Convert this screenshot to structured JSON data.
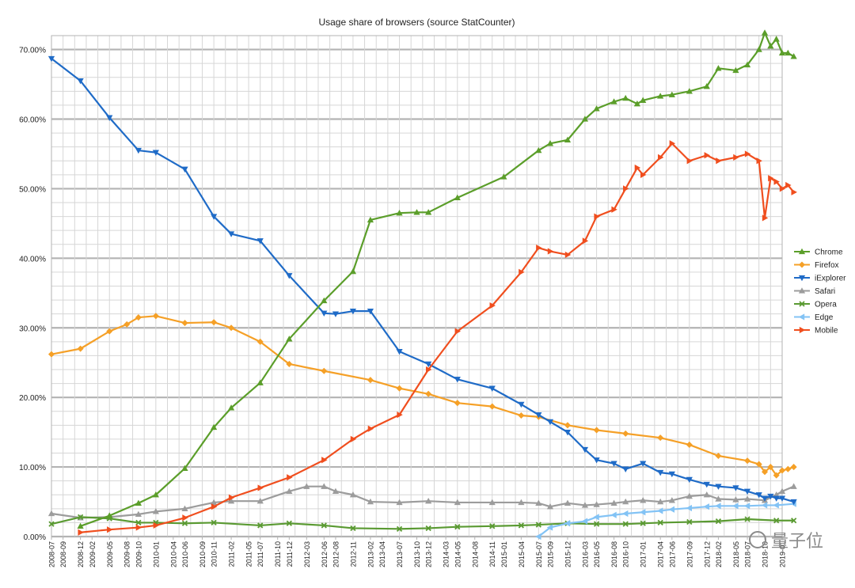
{
  "chart_data": {
    "type": "line",
    "title": "Usage share of browsers (source StatCounter)",
    "ylim": [
      0,
      72
    ],
    "y_ticks": [
      0,
      10,
      20,
      30,
      40,
      50,
      60,
      70
    ],
    "y_tick_labels": [
      "0.00%",
      "10.00%",
      "20.00%",
      "30.00%",
      "40.00%",
      "50.00%",
      "60.00%",
      "70.00%"
    ],
    "x_tick_labels": [
      "2008-07",
      "2008-09",
      "2008-12",
      "2009-02",
      "2009-05",
      "2009-08",
      "2009-10",
      "2010-01",
      "2010-04",
      "2010-06",
      "2010-09",
      "2010-11",
      "2011-02",
      "2011-05",
      "2011-07",
      "2011-10",
      "2011-12",
      "2012-03",
      "2012-06",
      "2012-08",
      "2012-11",
      "2013-02",
      "2013-04",
      "2013-07",
      "2013-10",
      "2013-12",
      "2014-03",
      "2014-05",
      "2014-08",
      "2014-11",
      "2015-01",
      "2015-04",
      "2015-07",
      "2015-09",
      "2015-12",
      "2016-03",
      "2016-05",
      "2016-08",
      "2016-10",
      "2017-01",
      "2017-04",
      "2017-06",
      "2017-09",
      "2017-12",
      "2018-02",
      "2018-05",
      "2018-07",
      "2018-10",
      "2019-01"
    ],
    "legend_position": "right",
    "grid": true,
    "series": [
      {
        "name": "Chrome",
        "color": "#5b9e2a",
        "marker": "triangle-up",
        "x": [
          "2008-12",
          "2009-05",
          "2009-10",
          "2010-01",
          "2010-06",
          "2010-11",
          "2011-02",
          "2011-07",
          "2011-12",
          "2012-06",
          "2012-11",
          "2013-02",
          "2013-07",
          "2013-10",
          "2013-12",
          "2014-05",
          "2015-01",
          "2015-07",
          "2015-09",
          "2015-12",
          "2016-03",
          "2016-05",
          "2016-08",
          "2016-10",
          "2016-12",
          "2017-01",
          "2017-04",
          "2017-06",
          "2017-09",
          "2017-12",
          "2018-02",
          "2018-05",
          "2018-07",
          "2018-09",
          "2018-10",
          "2018-11",
          "2018-12",
          "2019-01",
          "2019-02",
          "2019-03"
        ],
        "values": [
          1.5,
          3.0,
          4.8,
          6.0,
          9.8,
          15.7,
          18.5,
          22.1,
          28.4,
          33.9,
          38.1,
          45.5,
          46.5,
          46.6,
          46.6,
          48.7,
          51.7,
          55.5,
          56.5,
          57.0,
          60.0,
          61.5,
          62.5,
          63.0,
          62.2,
          62.7,
          63.3,
          63.5,
          64.0,
          64.7,
          67.3,
          67.0,
          67.8,
          70.0,
          72.4,
          70.5,
          71.5,
          69.5,
          69.5,
          69.0
        ]
      },
      {
        "name": "Firefox",
        "color": "#f5a027",
        "marker": "diamond",
        "x": [
          "2008-07",
          "2008-12",
          "2009-05",
          "2009-08",
          "2009-10",
          "2010-01",
          "2010-06",
          "2010-11",
          "2011-02",
          "2011-07",
          "2011-12",
          "2012-06",
          "2013-02",
          "2013-07",
          "2013-12",
          "2014-05",
          "2014-11",
          "2015-04",
          "2015-07",
          "2015-12",
          "2016-05",
          "2016-10",
          "2017-04",
          "2017-09",
          "2018-02",
          "2018-07",
          "2018-09",
          "2018-10",
          "2018-11",
          "2018-12",
          "2019-01",
          "2019-02",
          "2019-03"
        ],
        "values": [
          26.2,
          27.0,
          29.5,
          30.5,
          31.5,
          31.7,
          30.7,
          30.8,
          30.0,
          28.0,
          24.8,
          23.8,
          22.5,
          21.3,
          20.5,
          19.2,
          18.7,
          17.4,
          17.2,
          16.0,
          15.3,
          14.8,
          14.2,
          13.2,
          11.6,
          10.9,
          10.4,
          9.3,
          10.0,
          8.8,
          9.5,
          9.7,
          10.0
        ]
      },
      {
        "name": "iExplorer",
        "color": "#1f6bc7",
        "marker": "triangle-down",
        "x": [
          "2008-07",
          "2008-12",
          "2009-05",
          "2009-10",
          "2010-01",
          "2010-06",
          "2010-11",
          "2011-02",
          "2011-07",
          "2011-12",
          "2012-06",
          "2012-08",
          "2012-11",
          "2013-02",
          "2013-07",
          "2013-12",
          "2014-05",
          "2014-11",
          "2015-04",
          "2015-07",
          "2015-09",
          "2015-12",
          "2016-03",
          "2016-05",
          "2016-08",
          "2016-10",
          "2017-01",
          "2017-04",
          "2017-06",
          "2017-09",
          "2017-12",
          "2018-02",
          "2018-05",
          "2018-07",
          "2018-09",
          "2018-10",
          "2018-11",
          "2018-12",
          "2019-01",
          "2019-03"
        ],
        "values": [
          68.7,
          65.5,
          60.2,
          55.5,
          55.2,
          52.8,
          46.0,
          43.5,
          42.5,
          37.5,
          32.1,
          32.0,
          32.4,
          32.4,
          26.6,
          24.8,
          22.6,
          21.3,
          19.0,
          17.5,
          16.5,
          15.0,
          12.5,
          11.0,
          10.5,
          9.7,
          10.5,
          9.2,
          9.0,
          8.2,
          7.5,
          7.2,
          7.0,
          6.5,
          6.0,
          5.5,
          5.8,
          5.5,
          5.5,
          5.0
        ]
      },
      {
        "name": "Safari",
        "color": "#9c9c9c",
        "marker": "triangle-up",
        "x": [
          "2008-07",
          "2008-12",
          "2009-05",
          "2009-10",
          "2010-01",
          "2010-06",
          "2010-11",
          "2011-02",
          "2011-07",
          "2011-12",
          "2012-03",
          "2012-06",
          "2012-08",
          "2012-11",
          "2013-02",
          "2013-07",
          "2013-12",
          "2014-05",
          "2014-11",
          "2015-04",
          "2015-07",
          "2015-09",
          "2015-12",
          "2016-03",
          "2016-05",
          "2016-08",
          "2016-10",
          "2017-01",
          "2017-04",
          "2017-06",
          "2017-09",
          "2017-12",
          "2018-02",
          "2018-05",
          "2018-07",
          "2018-10",
          "2018-12",
          "2019-01",
          "2019-03"
        ],
        "values": [
          3.3,
          2.7,
          2.8,
          3.2,
          3.6,
          4.0,
          4.9,
          5.1,
          5.1,
          6.5,
          7.2,
          7.2,
          6.5,
          6.0,
          5.0,
          4.9,
          5.1,
          4.9,
          4.9,
          4.9,
          4.8,
          4.3,
          4.8,
          4.5,
          4.6,
          4.8,
          5.0,
          5.2,
          5.0,
          5.2,
          5.8,
          6.0,
          5.4,
          5.3,
          5.4,
          5.2,
          6.0,
          6.5,
          7.2
        ]
      },
      {
        "name": "Opera",
        "color": "#5a9a32",
        "marker": "x",
        "x": [
          "2008-07",
          "2008-12",
          "2009-05",
          "2009-10",
          "2010-01",
          "2010-06",
          "2010-11",
          "2011-07",
          "2011-12",
          "2012-06",
          "2012-11",
          "2013-07",
          "2013-12",
          "2014-05",
          "2014-11",
          "2015-04",
          "2015-07",
          "2015-12",
          "2016-05",
          "2016-10",
          "2017-01",
          "2017-04",
          "2017-09",
          "2018-02",
          "2018-07",
          "2018-12",
          "2019-03"
        ],
        "values": [
          1.8,
          2.8,
          2.6,
          2.0,
          2.0,
          1.9,
          2.0,
          1.6,
          1.9,
          1.6,
          1.2,
          1.1,
          1.2,
          1.4,
          1.5,
          1.6,
          1.7,
          1.9,
          1.8,
          1.8,
          1.9,
          2.0,
          2.1,
          2.2,
          2.5,
          2.3,
          2.3
        ]
      },
      {
        "name": "Edge",
        "color": "#83c3f5",
        "marker": "triangle-left",
        "x": [
          "2015-07",
          "2015-09",
          "2015-12",
          "2016-03",
          "2016-05",
          "2016-08",
          "2016-10",
          "2017-01",
          "2017-04",
          "2017-06",
          "2017-09",
          "2017-12",
          "2018-02",
          "2018-05",
          "2018-07",
          "2018-10",
          "2018-12",
          "2019-03"
        ],
        "values": [
          0.0,
          1.3,
          1.9,
          2.2,
          2.8,
          3.1,
          3.3,
          3.5,
          3.7,
          3.9,
          4.1,
          4.3,
          4.4,
          4.4,
          4.4,
          4.5,
          4.5,
          4.7
        ]
      },
      {
        "name": "Mobile",
        "color": "#f04e1e",
        "marker": "triangle-right",
        "x": [
          "2008-12",
          "2009-05",
          "2009-10",
          "2010-01",
          "2010-06",
          "2010-11",
          "2011-02",
          "2011-07",
          "2011-12",
          "2012-06",
          "2012-11",
          "2013-02",
          "2013-07",
          "2013-12",
          "2014-05",
          "2014-11",
          "2015-04",
          "2015-07",
          "2015-09",
          "2015-12",
          "2016-03",
          "2016-05",
          "2016-08",
          "2016-10",
          "2016-12",
          "2017-01",
          "2017-04",
          "2017-06",
          "2017-09",
          "2017-12",
          "2018-02",
          "2018-05",
          "2018-07",
          "2018-09",
          "2018-10",
          "2018-11",
          "2018-12",
          "2019-01",
          "2019-02",
          "2019-03"
        ],
        "values": [
          0.6,
          1.0,
          1.3,
          1.6,
          2.7,
          4.3,
          5.6,
          7.0,
          8.5,
          11.0,
          14.0,
          15.5,
          17.5,
          24.0,
          29.5,
          33.2,
          38.0,
          41.5,
          41.0,
          40.5,
          42.5,
          46.0,
          47.0,
          50.0,
          53.0,
          52.0,
          54.5,
          56.5,
          54.0,
          54.8,
          54.0,
          54.5,
          55.0,
          54.0,
          45.8,
          51.5,
          51.0,
          50.0,
          50.5,
          49.5
        ]
      }
    ]
  },
  "watermark": {
    "text": "量子位"
  }
}
